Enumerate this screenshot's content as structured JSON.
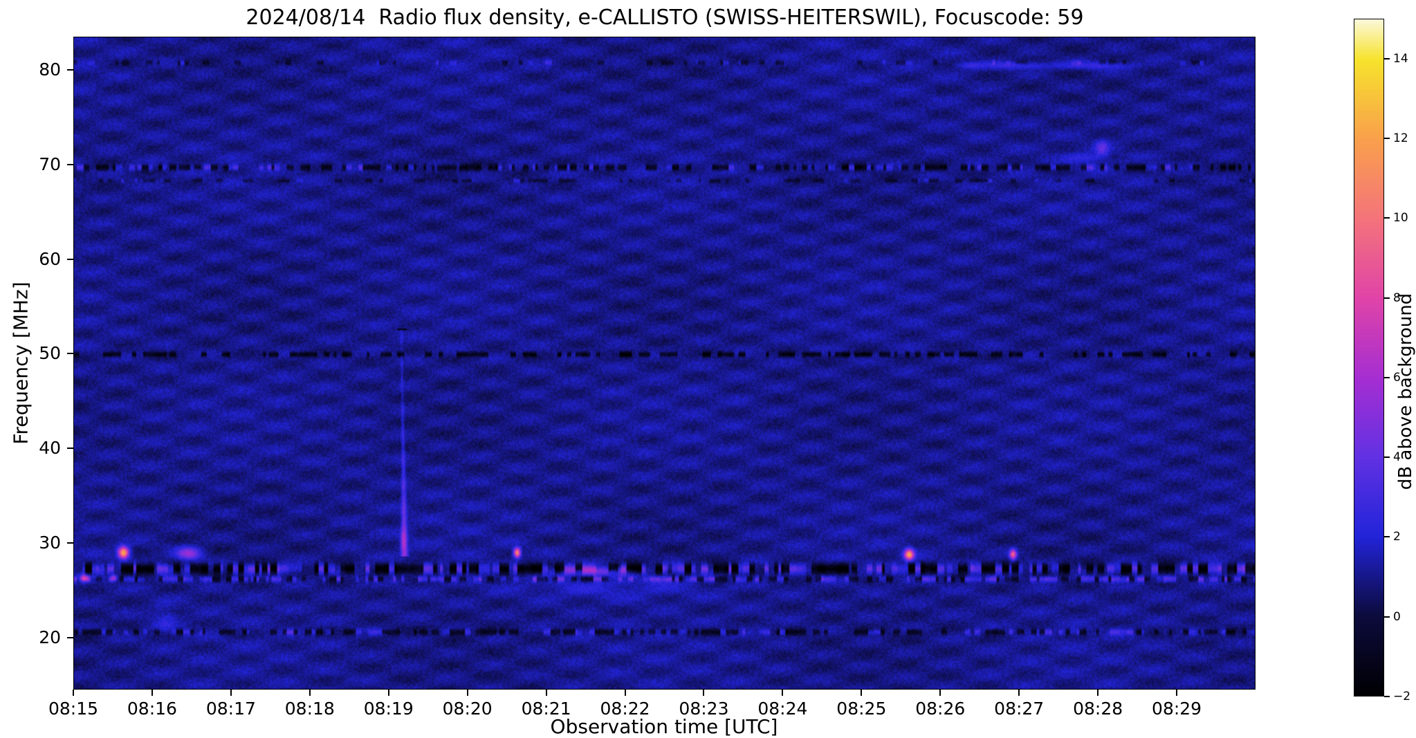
{
  "title": "2024/08/14  Radio flux density, e-CALLISTO (SWISS-HEITERSWIL), Focuscode: 59",
  "chart_data": {
    "type": "heatmap",
    "subtype": "radio-spectrogram",
    "xlabel": "Observation time [UTC]",
    "ylabel": "Frequency [MHz]",
    "x_start": "08:15",
    "x_end": "08:30",
    "x_ticks": [
      "08:15",
      "08:16",
      "08:17",
      "08:18",
      "08:19",
      "08:20",
      "08:21",
      "08:22",
      "08:23",
      "08:24",
      "08:25",
      "08:26",
      "08:27",
      "08:28",
      "08:29"
    ],
    "y_ticks": [
      20,
      30,
      40,
      50,
      60,
      70,
      80
    ],
    "y_range": [
      14.5,
      83.5
    ],
    "background_level_db": 1.0,
    "noise_db": 0.55,
    "colorbar": {
      "label": "dB above background",
      "range": [
        -2,
        15
      ],
      "ticks": [
        {
          "value": 14,
          "label": "14"
        },
        {
          "value": 12,
          "label": "12"
        },
        {
          "value": 10,
          "label": "10"
        },
        {
          "value": 8,
          "label": "8"
        },
        {
          "value": 6,
          "label": "6"
        },
        {
          "value": 4,
          "label": "4"
        },
        {
          "value": 2,
          "label": "2"
        },
        {
          "value": 0,
          "label": "0"
        },
        {
          "value": -2,
          "label": "−2"
        }
      ],
      "stops": [
        {
          "t": 0.0,
          "color": "#000003"
        },
        {
          "t": 0.118,
          "color": "#0c0b3d"
        },
        {
          "t": 0.235,
          "color": "#2224d9"
        },
        {
          "t": 0.353,
          "color": "#6231e3"
        },
        {
          "t": 0.47,
          "color": "#a62ed2"
        },
        {
          "t": 0.588,
          "color": "#e044a8"
        },
        {
          "t": 0.706,
          "color": "#f4747b"
        },
        {
          "t": 0.824,
          "color": "#f9a04c"
        },
        {
          "t": 0.941,
          "color": "#f7e32c"
        },
        {
          "t": 1.0,
          "color": "#fbf8d8"
        }
      ]
    },
    "interference_bands": [
      {
        "freq_mhz": 80.9,
        "half_mhz": 0.25,
        "dark_prob": 0.18,
        "dark_db": -1.2,
        "bright_prob": 0.08,
        "bright_db": 1.2
      },
      {
        "freq_mhz": 69.8,
        "half_mhz": 0.3,
        "dark_prob": 0.4,
        "dark_db": -2.2,
        "bright_prob": 0.2,
        "bright_db": 1.8
      },
      {
        "freq_mhz": 68.4,
        "half_mhz": 0.2,
        "dark_prob": 0.28,
        "dark_db": -1.1,
        "bright_prob": 0.06,
        "bright_db": 1.2
      },
      {
        "freq_mhz": 50.0,
        "half_mhz": 0.25,
        "dark_prob": 0.5,
        "dark_db": -2.6,
        "bright_prob": 0.0,
        "bright_db": 0
      },
      {
        "freq_mhz": 27.3,
        "half_mhz": 0.5,
        "dark_prob": 0.45,
        "dark_db": -3.2,
        "bright_prob": 0.33,
        "bright_db": 2.4
      },
      {
        "freq_mhz": 26.2,
        "half_mhz": 0.3,
        "dark_prob": 0.22,
        "dark_db": -1.6,
        "bright_prob": 0.45,
        "bright_db": 2.2
      },
      {
        "freq_mhz": 20.6,
        "half_mhz": 0.3,
        "dark_prob": 0.45,
        "dark_db": -1.8,
        "bright_prob": 0.18,
        "bright_db": 1.5
      }
    ],
    "burst": {
      "kind": "type-III-like drifting burst",
      "t_min": 4.15,
      "f_top": 52.6,
      "f_bottom": 28.8,
      "drift_min": 0.04,
      "width_top_s": 1.5,
      "width_bottom_s": 5,
      "db_top": 0.9,
      "db_bottom": 4.2
    },
    "features": [
      {
        "kind": "bright-spot",
        "t_min": 0.62,
        "freq_mhz": 29.0,
        "width_s": 8,
        "height_mhz": 1.2,
        "peak_db": 11.5
      },
      {
        "kind": "violet-patch",
        "t_min": 1.45,
        "freq_mhz": 28.9,
        "width_s": 18,
        "height_mhz": 1.3,
        "peak_db": 4.5
      },
      {
        "kind": "bright-spot",
        "t_min": 5.62,
        "freq_mhz": 29.0,
        "width_s": 5,
        "height_mhz": 1.0,
        "peak_db": 10.5
      },
      {
        "kind": "bright-spot",
        "t_min": 10.6,
        "freq_mhz": 28.8,
        "width_s": 7,
        "height_mhz": 1.1,
        "peak_db": 11.0
      },
      {
        "kind": "bright-spot",
        "t_min": 11.92,
        "freq_mhz": 28.8,
        "width_s": 5,
        "height_mhz": 1.0,
        "peak_db": 8.5
      },
      {
        "kind": "orange-dash",
        "t_min": 0.12,
        "freq_mhz": 26.3,
        "width_s": 6,
        "height_mhz": 0.7,
        "peak_db": 7.0
      },
      {
        "kind": "orange-dash",
        "t_min": 0.5,
        "freq_mhz": 26.3,
        "width_s": 4,
        "height_mhz": 0.6,
        "peak_db": 5.0
      },
      {
        "kind": "purple-band-enhancement",
        "t_min": 6.6,
        "freq_mhz": 27.0,
        "width_s": 50,
        "height_mhz": 0.9,
        "peak_db": 3.5
      },
      {
        "kind": "burst-core",
        "t_min": 4.17,
        "freq_mhz": 30.3,
        "width_s": 4,
        "height_mhz": 2.2,
        "peak_db": 2.2
      },
      {
        "kind": "blue-patch",
        "t_min": 13.05,
        "freq_mhz": 71.8,
        "width_s": 10,
        "height_mhz": 1.6,
        "peak_db": 2.6
      },
      {
        "kind": "blue-speckle-area",
        "t_min": 12.85,
        "freq_mhz": 70.8,
        "width_s": 30,
        "height_mhz": 1.0,
        "peak_db": 1.4
      },
      {
        "kind": "blue-patch",
        "t_min": 11.35,
        "freq_mhz": 80.6,
        "width_s": 20,
        "height_mhz": 0.7,
        "peak_db": 1.6
      },
      {
        "kind": "blue-patch",
        "t_min": 12.0,
        "freq_mhz": 80.6,
        "width_s": 50,
        "height_mhz": 0.8,
        "peak_db": 1.9
      },
      {
        "kind": "blue-patch",
        "t_min": 13.0,
        "freq_mhz": 80.6,
        "width_s": 55,
        "height_mhz": 0.8,
        "peak_db": 1.9
      },
      {
        "kind": "faint-blue-smudge",
        "t_min": 1.15,
        "freq_mhz": 22.0,
        "width_s": 18,
        "height_mhz": 3.0,
        "peak_db": 1.0
      },
      {
        "kind": "faint-blue-wash",
        "t_min": 6.8,
        "freq_mhz": 25.3,
        "width_s": 150,
        "height_mhz": 2.4,
        "peak_db": 0.9
      }
    ]
  }
}
